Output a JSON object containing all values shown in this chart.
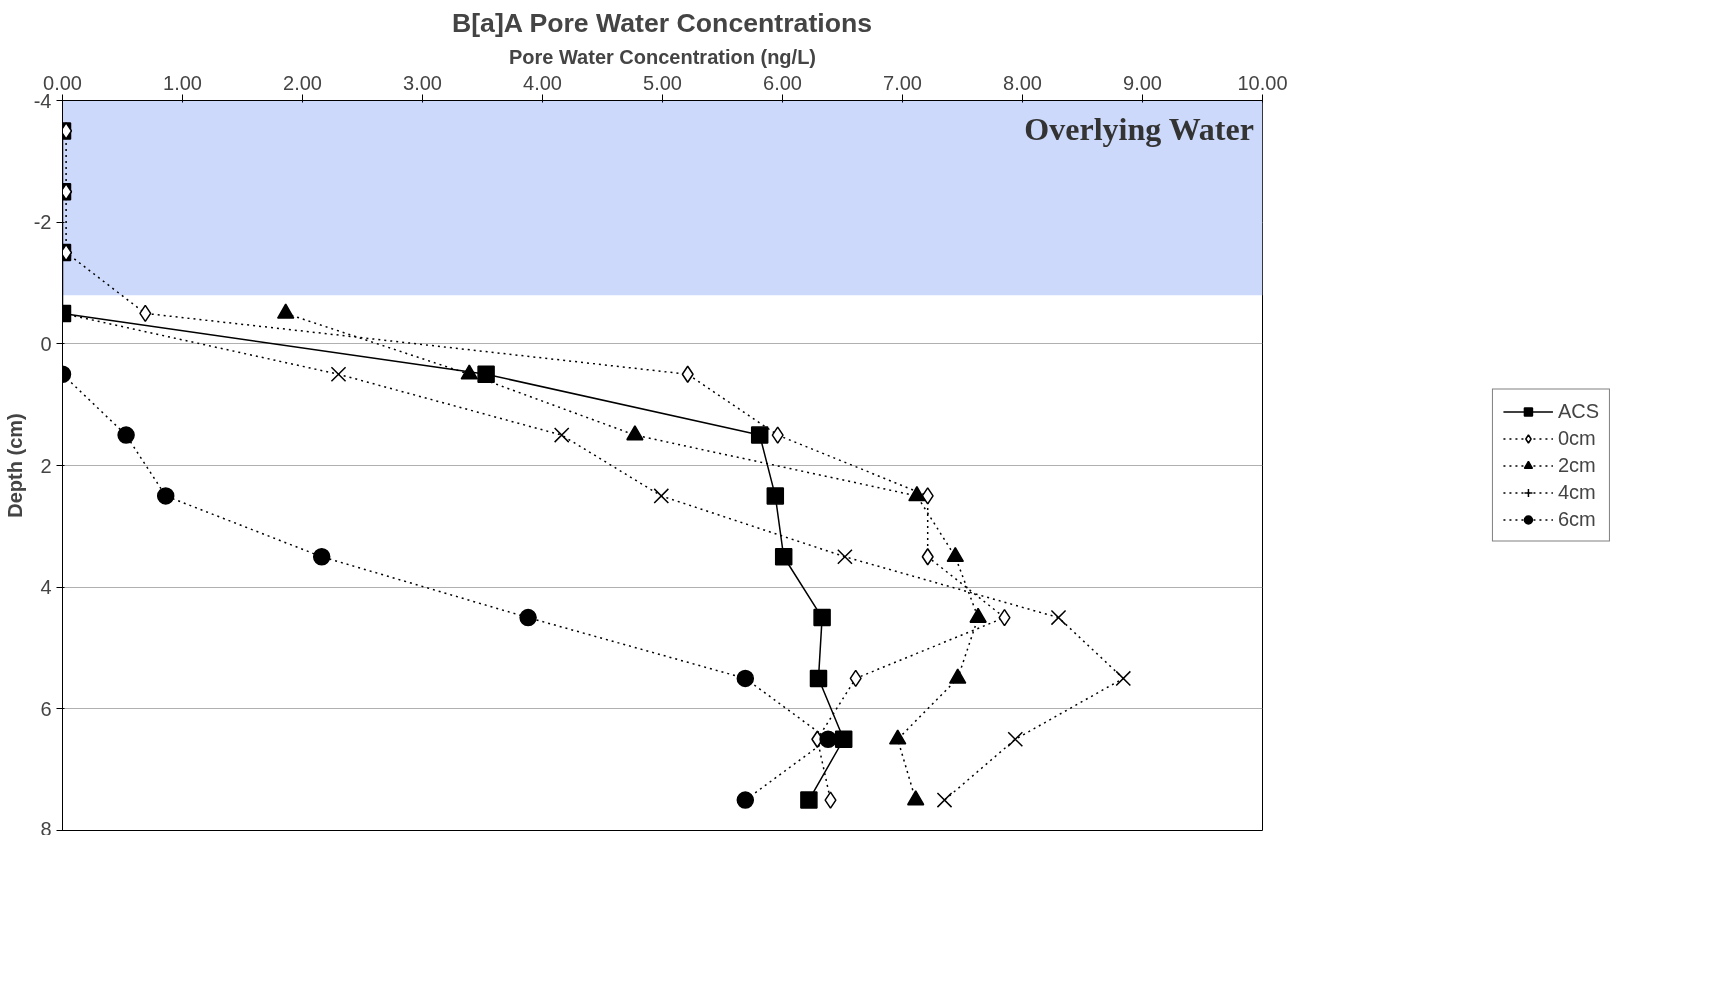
{
  "chart_data": {
    "type": "line",
    "title": "B[a]A Pore Water Concentrations",
    "xlabel": "Pore Water Concentration (ng/L)",
    "ylabel": "Depth (cm)",
    "xlim": [
      0,
      10
    ],
    "xticks": [
      {
        "value": 0,
        "label": "0.00"
      },
      {
        "value": 1,
        "label": "1.00"
      },
      {
        "value": 2,
        "label": "2.00"
      },
      {
        "value": 3,
        "label": "3.00"
      },
      {
        "value": 4,
        "label": "4.00"
      },
      {
        "value": 5,
        "label": "5.00"
      },
      {
        "value": 6,
        "label": "6.00"
      },
      {
        "value": 7,
        "label": "7.00"
      },
      {
        "value": 8,
        "label": "8.00"
      },
      {
        "value": 9,
        "label": "9.00"
      },
      {
        "value": 10,
        "label": "10.00"
      }
    ],
    "ylim": [
      8,
      -4
    ],
    "yticks": [
      -4,
      -2,
      0,
      2,
      4,
      6,
      8
    ],
    "grid": "y",
    "legend": "right",
    "bands": [
      {
        "axis": "y",
        "from": -4,
        "to": -0.8,
        "label": "Overlying Water",
        "color": "#ccd9fb"
      }
    ],
    "series": [
      {
        "name": "ACS",
        "color": "#000000",
        "marker": "square",
        "line_style": "solid",
        "x": [
          0,
          0,
          0,
          0,
          3.53,
          5.81,
          5.94,
          6.01,
          6.33,
          6.3,
          6.51,
          6.22
        ],
        "values": [
          -3.5,
          -2.5,
          -1.5,
          -0.5,
          0.5,
          1.5,
          2.5,
          3.5,
          4.5,
          5.5,
          6.5,
          7.5
        ]
      },
      {
        "name": "0cm",
        "color": "#000000",
        "marker": "diamond",
        "line_style": "dotted",
        "x": [
          0.03,
          0.03,
          0.03,
          0.69,
          5.21,
          5.96,
          7.21,
          7.21,
          7.85,
          6.61,
          6.29,
          6.4
        ],
        "values": [
          -3.5,
          -2.5,
          -1.5,
          -0.5,
          0.5,
          1.5,
          2.5,
          3.5,
          4.5,
          5.5,
          6.5,
          7.5
        ]
      },
      {
        "name": "2cm",
        "color": "#000000",
        "marker": "triangle",
        "line_style": "dotted",
        "x": [
          1.86,
          3.39,
          4.77,
          7.12,
          7.44,
          7.63,
          7.46,
          6.96,
          7.11
        ],
        "values": [
          -0.5,
          0.5,
          1.5,
          2.5,
          3.5,
          4.5,
          5.5,
          6.5,
          7.5
        ]
      },
      {
        "name": "4cm",
        "color": "#000000",
        "marker": "cross",
        "line_style": "dotted",
        "x": [
          0,
          2.3,
          4.16,
          4.99,
          6.52,
          8.3,
          8.84,
          7.94,
          7.35
        ],
        "values": [
          -0.5,
          0.5,
          1.5,
          2.5,
          3.5,
          4.5,
          5.5,
          6.5,
          7.5
        ]
      },
      {
        "name": "6cm",
        "color": "#000000",
        "marker": "circle",
        "line_style": "dotted",
        "x": [
          0,
          0.53,
          0.86,
          2.16,
          3.88,
          5.69,
          6.38,
          5.69
        ],
        "values": [
          0.5,
          1.5,
          2.5,
          3.5,
          4.5,
          5.5,
          6.5,
          7.5
        ]
      }
    ]
  }
}
